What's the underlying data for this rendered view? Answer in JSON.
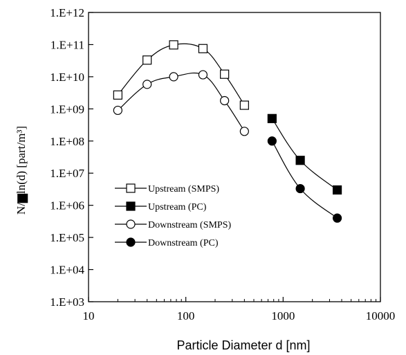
{
  "chart_data": {
    "type": "scatter",
    "title": "",
    "xlabel": "Particle Diameter d [nm]",
    "ylabel": "N/▆ln(d) [part/m³]",
    "x_scale": "log",
    "y_scale": "log",
    "xlim": [
      10,
      10000
    ],
    "ylim": [
      1000,
      1000000000000
    ],
    "x_ticks": [
      10,
      100,
      1000,
      10000
    ],
    "x_tick_labels": [
      "10",
      "100",
      "1000",
      "10000"
    ],
    "y_ticks": [
      1000.0,
      10000.0,
      100000.0,
      1000000.0,
      10000000.0,
      100000000.0,
      1000000000.0,
      10000000000.0,
      100000000000.0,
      1000000000000.0
    ],
    "y_tick_labels": [
      "1.E+03",
      "1.E+04",
      "1.E+05",
      "1.E+06",
      "1.E+07",
      "1.E+08",
      "1.E+09",
      "1.E+10",
      "1.E+11",
      "1.E+12"
    ],
    "grid": false,
    "legend_position": "lower-left",
    "series": [
      {
        "name": "Upstream (SMPS)",
        "marker": "square-open",
        "x": [
          20,
          40,
          75,
          150,
          250,
          400
        ],
        "y": [
          2700000000.0,
          33000000000.0,
          98000000000.0,
          75000000000.0,
          12000000000.0,
          1300000000.0
        ]
      },
      {
        "name": "Upstream (PC)",
        "marker": "square-filled",
        "x": [
          770,
          1500,
          3600
        ],
        "y": [
          500000000.0,
          25000000.0,
          3000000.0
        ]
      },
      {
        "name": "Downstream (SMPS)",
        "marker": "circle-open",
        "x": [
          20,
          40,
          75,
          150,
          250,
          400
        ],
        "y": [
          900000000.0,
          5800000000.0,
          10000000000.0,
          11500000000.0,
          1800000000.0,
          200000000.0
        ]
      },
      {
        "name": "Downstream (PC)",
        "marker": "circle-filled",
        "x": [
          770,
          1500,
          3600
        ],
        "y": [
          100000000.0,
          3300000.0,
          400000.0
        ]
      }
    ]
  }
}
